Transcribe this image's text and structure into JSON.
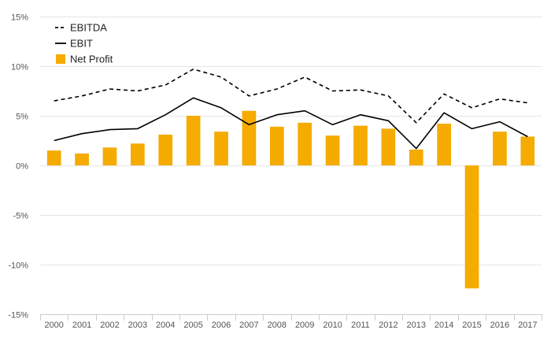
{
  "chart_data": {
    "type": "bar",
    "categories": [
      "2000",
      "2001",
      "2002",
      "2003",
      "2004",
      "2005",
      "2006",
      "2007",
      "2008",
      "2009",
      "2010",
      "2011",
      "2012",
      "2013",
      "2014",
      "2015",
      "2016",
      "2017"
    ],
    "ylim": [
      -15,
      15
    ],
    "y_ticks": [
      15,
      10,
      5,
      0,
      -5,
      -10,
      -15
    ],
    "y_tick_labels": [
      "15%",
      "10%",
      "5%",
      "0%",
      "-5%",
      "-10%",
      "-15%"
    ],
    "grid": true,
    "legend_position": "top-left",
    "series": [
      {
        "name": "Net Profit",
        "type": "bar",
        "color": "#f5ab00",
        "values": [
          1.5,
          1.2,
          1.8,
          2.2,
          3.1,
          5.0,
          3.4,
          5.5,
          3.9,
          4.3,
          3.0,
          4.0,
          3.7,
          1.6,
          4.2,
          -12.4,
          3.4,
          2.9
        ]
      },
      {
        "name": "EBITDA",
        "type": "line",
        "style": "dashed",
        "color": "#000000",
        "values": [
          6.5,
          7.0,
          7.7,
          7.5,
          8.1,
          9.7,
          8.9,
          7.0,
          7.7,
          8.9,
          7.5,
          7.6,
          7.0,
          4.3,
          7.2,
          5.8,
          6.7,
          6.3
        ]
      },
      {
        "name": "EBIT",
        "type": "line",
        "style": "solid",
        "color": "#000000",
        "values": [
          2.5,
          3.2,
          3.6,
          3.7,
          5.1,
          6.8,
          5.8,
          4.1,
          5.1,
          5.5,
          4.1,
          5.1,
          4.5,
          1.7,
          5.3,
          3.7,
          4.4,
          2.9
        ]
      }
    ],
    "legend": [
      "EBITDA",
      "EBIT",
      "Net Profit"
    ]
  }
}
